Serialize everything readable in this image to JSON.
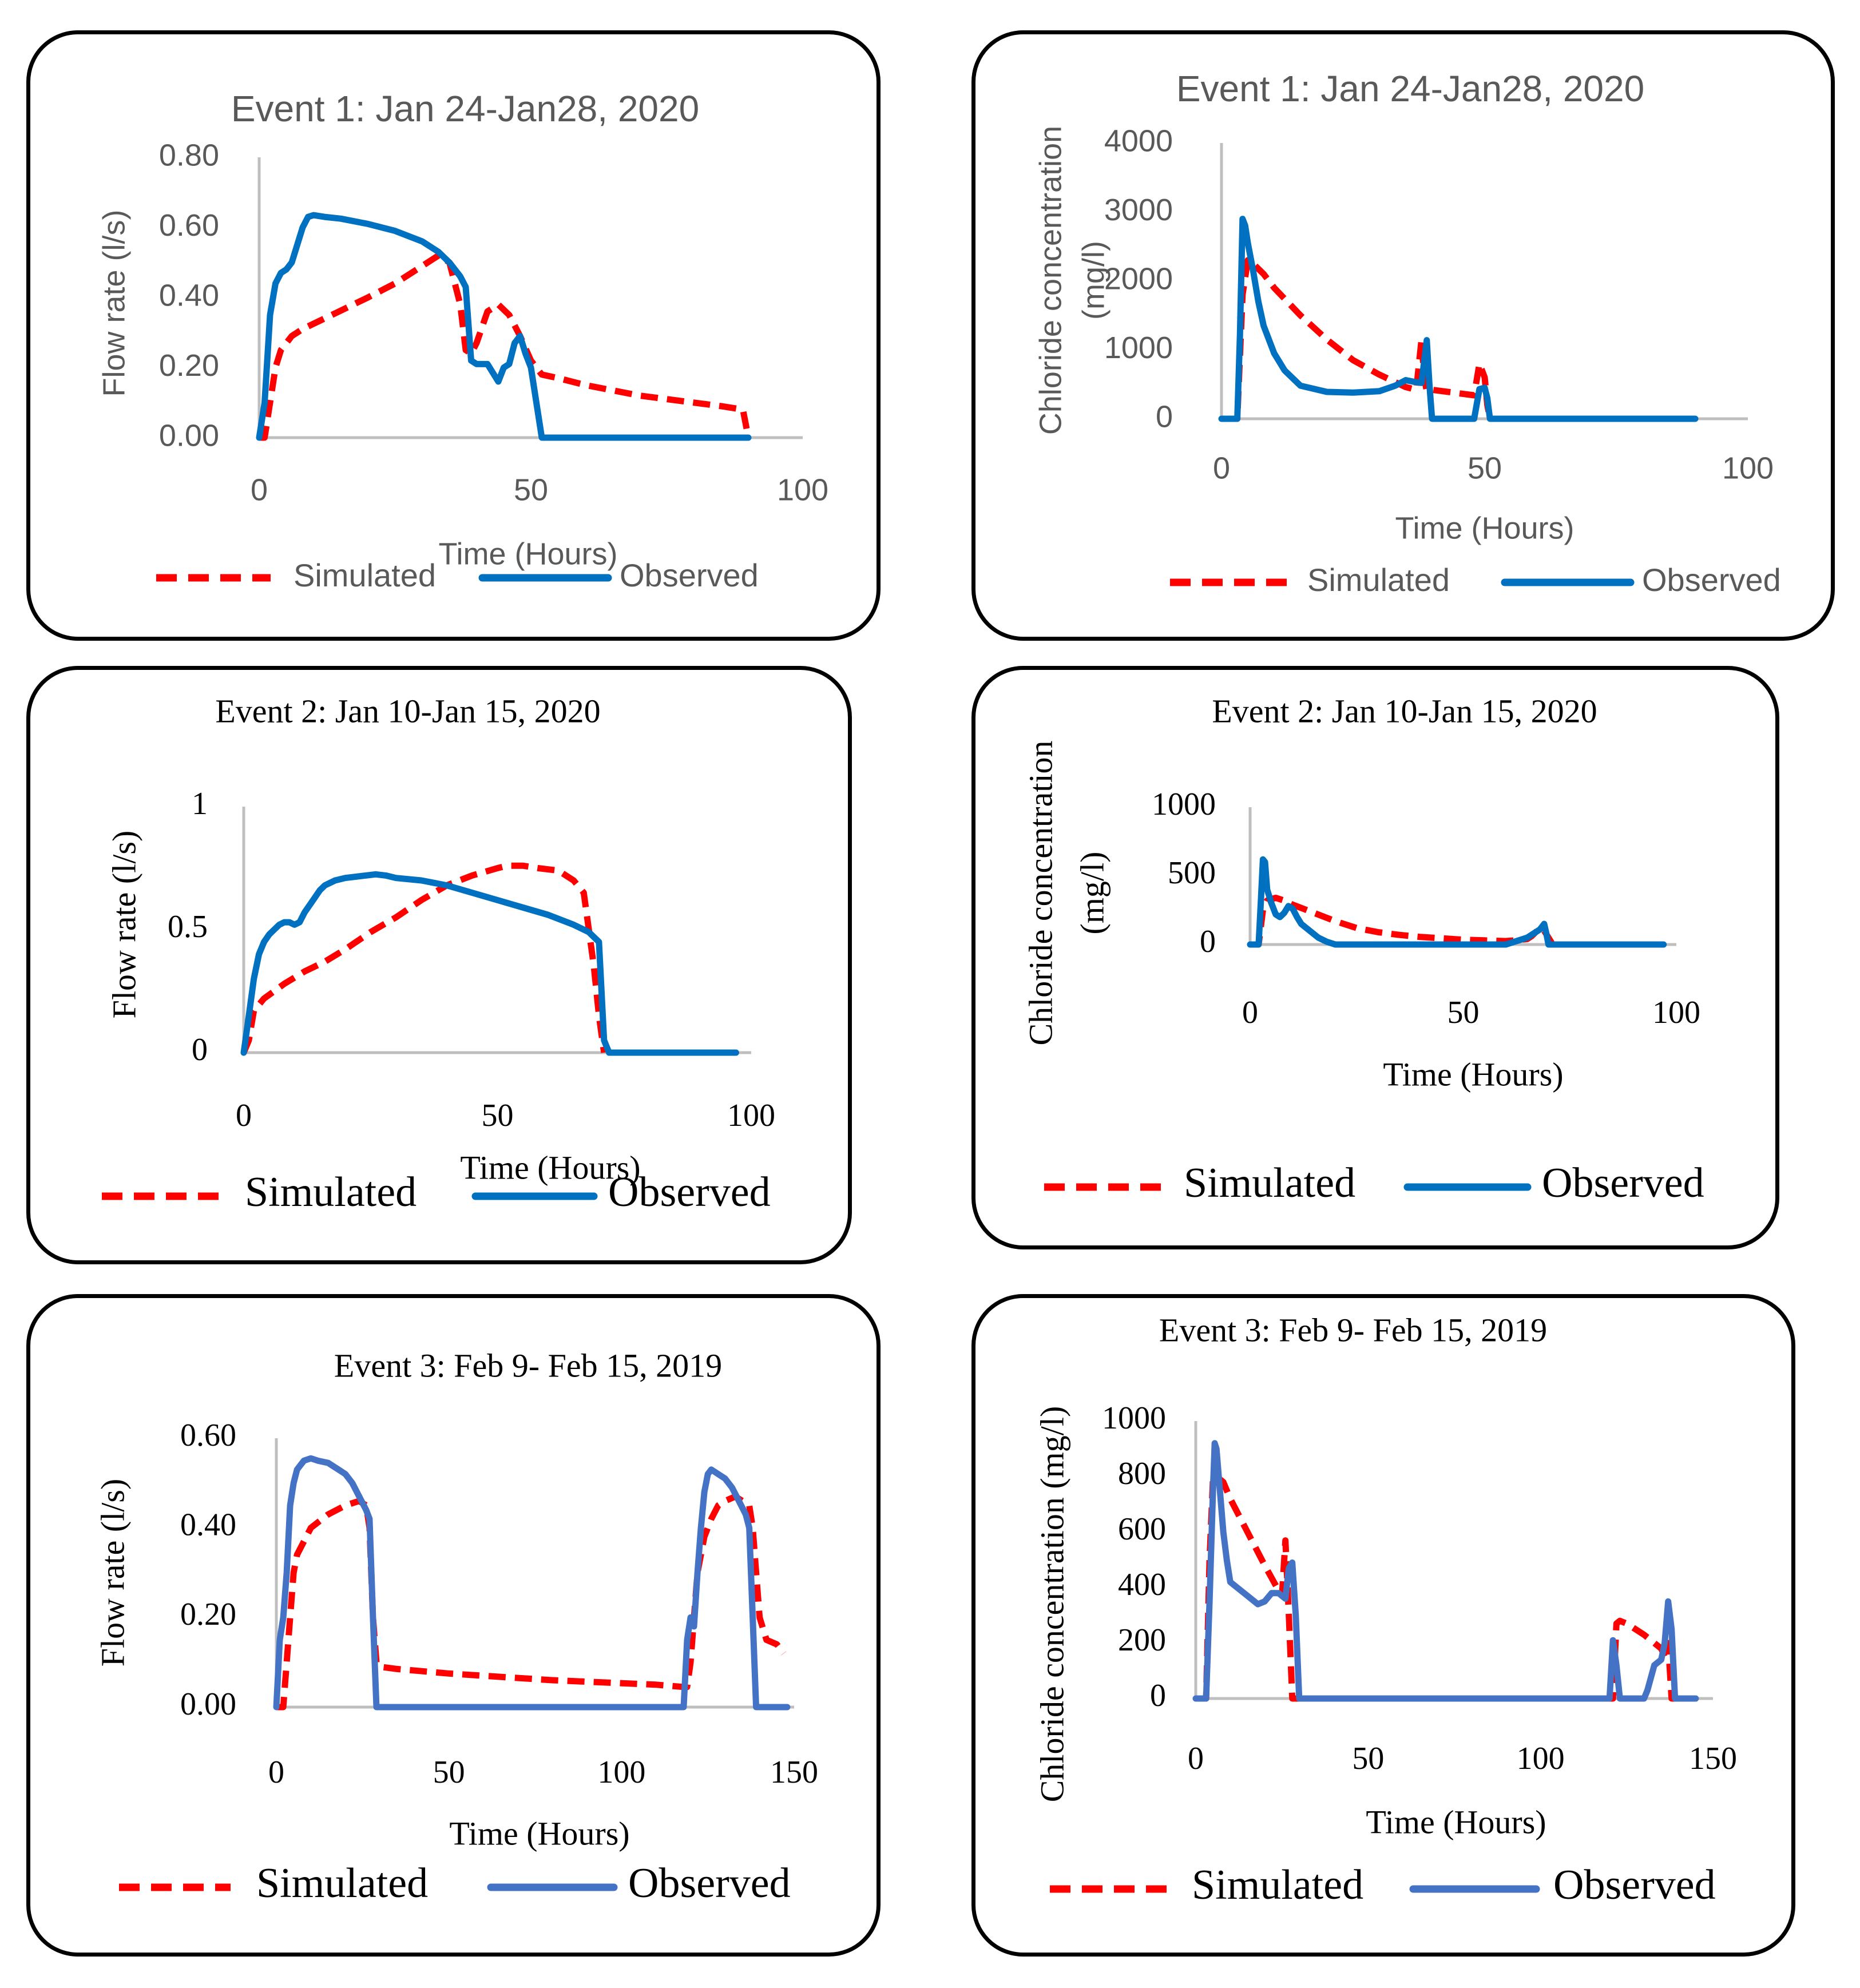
{
  "colors": {
    "simulated": "#ff0000",
    "observed": "#0070c0",
    "observed_alt": "#4472c4",
    "axis": "#bfbfbf",
    "text_sans": "#595959",
    "text_serif": "#000000"
  },
  "chart_data": [
    {
      "id": "p1",
      "type": "line",
      "title": "Event 1: Jan 24-Jan28, 2020",
      "xlabel": "Time (Hours)",
      "ylabel": "Flow rate (l/s)",
      "ylabel2": "",
      "xlim": [
        0,
        100
      ],
      "ylim": [
        0,
        0.8
      ],
      "xticks": [
        "0",
        "50",
        "100"
      ],
      "yticks": [
        "0.00",
        "0.20",
        "0.40",
        "0.60",
        "0.80"
      ],
      "legend": [
        "Simulated",
        "Observed"
      ],
      "series": [
        {
          "name": "Simulated",
          "x": [
            0,
            1,
            2,
            3,
            4,
            6,
            8,
            12,
            16,
            20,
            25,
            30,
            33,
            35,
            36,
            37,
            38,
            39,
            40,
            42,
            43,
            44,
            46,
            48,
            50,
            52,
            55,
            60,
            70,
            80,
            85,
            89,
            90
          ],
          "y": [
            0,
            0,
            0.1,
            0.2,
            0.25,
            0.29,
            0.31,
            0.34,
            0.37,
            0.4,
            0.44,
            0.49,
            0.52,
            0.5,
            0.44,
            0.38,
            0.25,
            0.24,
            0.27,
            0.36,
            0.37,
            0.38,
            0.35,
            0.29,
            0.22,
            0.18,
            0.17,
            0.15,
            0.12,
            0.1,
            0.09,
            0.08,
            0.0
          ]
        },
        {
          "name": "Observed",
          "x": [
            0,
            1,
            2,
            3,
            4,
            5,
            6,
            7,
            8,
            9,
            10,
            12,
            15,
            20,
            25,
            30,
            33,
            35,
            37,
            38,
            39,
            40,
            42,
            44,
            45,
            46,
            47,
            48,
            49,
            50,
            51,
            52,
            53,
            55,
            60,
            70,
            80,
            90
          ],
          "y": [
            0,
            0.1,
            0.35,
            0.44,
            0.47,
            0.48,
            0.5,
            0.55,
            0.6,
            0.63,
            0.635,
            0.63,
            0.625,
            0.61,
            0.59,
            0.56,
            0.53,
            0.5,
            0.46,
            0.43,
            0.22,
            0.21,
            0.21,
            0.16,
            0.2,
            0.21,
            0.27,
            0.29,
            0.24,
            0.2,
            0.1,
            0,
            0,
            0,
            0,
            0,
            0,
            0
          ]
        }
      ]
    },
    {
      "id": "p2",
      "type": "line",
      "title": "Event 1: Jan 24-Jan28, 2020",
      "xlabel": "Time (Hours)",
      "ylabel": "Chloride concentration",
      "ylabel2": "(mg/l)",
      "xlim": [
        0,
        100
      ],
      "ylim": [
        0,
        4000
      ],
      "xticks": [
        "0",
        "50",
        "100"
      ],
      "yticks": [
        "0",
        "1000",
        "2000",
        "3000",
        "4000"
      ],
      "legend": [
        "Simulated",
        "Observed"
      ],
      "series": [
        {
          "name": "Simulated",
          "x": [
            0,
            3,
            4,
            5,
            6,
            8,
            10,
            15,
            20,
            25,
            30,
            35,
            37,
            38,
            38.5,
            39,
            40,
            45,
            48,
            49,
            50,
            50.5,
            51
          ],
          "y": [
            0,
            0,
            1800,
            2300,
            2250,
            2100,
            1900,
            1500,
            1150,
            850,
            640,
            460,
            420,
            1150,
            600,
            400,
            420,
            370,
            340,
            800,
            600,
            200,
            0
          ]
        },
        {
          "name": "Observed",
          "x": [
            0,
            3,
            3.5,
            4,
            4.5,
            5,
            6,
            7,
            8,
            10,
            12,
            15,
            20,
            25,
            30,
            33,
            35,
            37,
            38,
            39,
            39.5,
            40,
            40.5,
            41,
            45,
            48,
            49,
            50,
            50.5,
            51,
            55,
            60,
            70,
            80,
            90
          ],
          "y": [
            0,
            0,
            1200,
            2900,
            2800,
            2550,
            2150,
            1700,
            1350,
            950,
            700,
            480,
            390,
            380,
            400,
            480,
            560,
            530,
            520,
            1140,
            500,
            0,
            0,
            0,
            0,
            0,
            430,
            450,
            300,
            0,
            0,
            0,
            0,
            0,
            0
          ]
        }
      ]
    },
    {
      "id": "p3",
      "type": "line",
      "title": "Event 2: Jan 10-Jan 15, 2020",
      "xlabel": "Time (Hours)",
      "ylabel": "Flow rate (l/s)",
      "ylabel2": "",
      "xlim": [
        0,
        100
      ],
      "ylim": [
        0,
        1
      ],
      "xticks": [
        "0",
        "50",
        "100"
      ],
      "yticks": [
        "0",
        "0.5",
        "1"
      ],
      "legend": [
        "Simulated",
        "Observed"
      ],
      "series": [
        {
          "name": "Simulated",
          "x": [
            0,
            1,
            2,
            4,
            8,
            12,
            16,
            20,
            25,
            30,
            35,
            40,
            45,
            50,
            52,
            55,
            58,
            62,
            65,
            67,
            68,
            69,
            70,
            71
          ],
          "y": [
            0,
            0.05,
            0.17,
            0.22,
            0.28,
            0.33,
            0.37,
            0.42,
            0.49,
            0.55,
            0.62,
            0.68,
            0.72,
            0.75,
            0.76,
            0.76,
            0.75,
            0.74,
            0.7,
            0.65,
            0.5,
            0.35,
            0.15,
            0
          ]
        },
        {
          "name": "Observed",
          "x": [
            0,
            1,
            2,
            3,
            4,
            5,
            6,
            7,
            8,
            9,
            10,
            11,
            12,
            13,
            14,
            15,
            16,
            18,
            20,
            22,
            24,
            26,
            28,
            30,
            35,
            40,
            45,
            50,
            55,
            60,
            65,
            68,
            69,
            70,
            71,
            72,
            80,
            90,
            97
          ],
          "y": [
            0,
            0.15,
            0.3,
            0.4,
            0.45,
            0.48,
            0.5,
            0.52,
            0.53,
            0.53,
            0.52,
            0.53,
            0.57,
            0.6,
            0.63,
            0.66,
            0.68,
            0.7,
            0.71,
            0.715,
            0.72,
            0.725,
            0.72,
            0.71,
            0.7,
            0.68,
            0.65,
            0.62,
            0.59,
            0.56,
            0.52,
            0.49,
            0.47,
            0.45,
            0.05,
            0,
            0,
            0,
            0
          ]
        }
      ]
    },
    {
      "id": "p4",
      "type": "line",
      "title": "Event 2: Jan 10-Jan 15, 2020",
      "xlabel": "Time (Hours)",
      "ylabel": "Chloride concentration",
      "ylabel2": "(mg/l)",
      "xlim": [
        0,
        100
      ],
      "ylim": [
        0,
        1000
      ],
      "xticks": [
        "0",
        "50",
        "100"
      ],
      "yticks": [
        "0",
        "500",
        "1000"
      ],
      "legend": [
        "Simulated",
        "Observed"
      ],
      "series": [
        {
          "name": "Simulated",
          "x": [
            0,
            2,
            3,
            4,
            5,
            6,
            8,
            10,
            15,
            20,
            25,
            30,
            35,
            40,
            45,
            50,
            55,
            60,
            62,
            65,
            66,
            67,
            68,
            69,
            70,
            71
          ],
          "y": [
            0,
            0,
            250,
            320,
            330,
            340,
            320,
            290,
            230,
            170,
            120,
            90,
            70,
            55,
            45,
            35,
            30,
            25,
            30,
            40,
            60,
            90,
            120,
            100,
            50,
            0
          ]
        },
        {
          "name": "Observed",
          "x": [
            0,
            2,
            2.5,
            3,
            3.5,
            4,
            5,
            6,
            7,
            8,
            9,
            10,
            11,
            12,
            14,
            16,
            18,
            20,
            25,
            30,
            40,
            50,
            60,
            65,
            68,
            69,
            69.5,
            70,
            71,
            80,
            90,
            97
          ],
          "y": [
            0,
            0,
            300,
            620,
            600,
            400,
            300,
            220,
            200,
            230,
            280,
            260,
            200,
            150,
            100,
            50,
            20,
            0,
            0,
            0,
            0,
            0,
            0,
            50,
            110,
            150,
            80,
            0,
            0,
            0,
            0,
            0
          ]
        }
      ]
    },
    {
      "id": "p5",
      "type": "line",
      "title": "Event 3: Feb 9- Feb 15, 2019",
      "xlabel": "Time (Hours)",
      "ylabel": "Flow rate (l/s)",
      "ylabel2": "",
      "xlim": [
        0,
        150
      ],
      "ylim": [
        0,
        0.6
      ],
      "xticks": [
        "0",
        "50",
        "100",
        "150"
      ],
      "yticks": [
        "0.00",
        "0.20",
        "0.40",
        "0.60"
      ],
      "legend": [
        "Simulated",
        "Observed"
      ],
      "series": [
        {
          "name": "Simulated",
          "x": [
            0,
            2,
            3,
            4,
            5,
            6,
            8,
            10,
            15,
            20,
            24,
            26,
            27,
            28,
            29,
            30,
            35,
            50,
            80,
            110,
            118,
            119,
            120,
            121,
            122,
            124,
            126,
            128,
            130,
            133,
            135,
            137,
            138,
            139,
            140,
            142,
            145,
            147
          ],
          "y": [
            0,
            0,
            0.1,
            0.2,
            0.3,
            0.34,
            0.37,
            0.4,
            0.43,
            0.45,
            0.46,
            0.45,
            0.4,
            0.2,
            0.1,
            0.09,
            0.085,
            0.075,
            0.06,
            0.05,
            0.045,
            0.045,
            0.1,
            0.2,
            0.3,
            0.38,
            0.42,
            0.45,
            0.46,
            0.47,
            0.46,
            0.45,
            0.4,
            0.3,
            0.2,
            0.15,
            0.14,
            0.12
          ]
        },
        {
          "name": "Observed",
          "x": [
            0,
            1,
            2,
            3,
            4,
            5,
            6,
            7,
            8,
            10,
            12,
            15,
            18,
            20,
            22,
            24,
            26,
            27,
            28,
            29,
            30,
            35,
            50,
            80,
            110,
            118,
            119,
            120,
            121,
            122,
            123,
            124,
            125,
            126,
            127,
            128,
            130,
            132,
            134,
            136,
            137,
            138,
            139,
            140,
            141,
            145,
            148
          ],
          "y": [
            0,
            0.15,
            0.2,
            0.3,
            0.45,
            0.5,
            0.53,
            0.54,
            0.55,
            0.555,
            0.55,
            0.545,
            0.53,
            0.52,
            0.5,
            0.47,
            0.44,
            0.42,
            0.2,
            0,
            0,
            0,
            0,
            0,
            0,
            0,
            0.15,
            0.2,
            0.18,
            0.3,
            0.4,
            0.48,
            0.52,
            0.53,
            0.525,
            0.52,
            0.51,
            0.49,
            0.46,
            0.43,
            0.4,
            0.2,
            0,
            0,
            0,
            0,
            0
          ]
        }
      ]
    },
    {
      "id": "p6",
      "type": "line",
      "title": "Event 3: Feb 9- Feb 15, 2019",
      "xlabel": "Time (Hours)",
      "ylabel": "Chloride concentration (mg/l)",
      "ylabel2": "",
      "xlim": [
        0,
        150
      ],
      "ylim": [
        0,
        1000
      ],
      "xticks": [
        "0",
        "50",
        "100",
        "150"
      ],
      "yticks": [
        "0",
        "200",
        "400",
        "600",
        "800",
        "1000"
      ],
      "legend": [
        "Simulated",
        "Observed"
      ],
      "series": [
        {
          "name": "Simulated",
          "x": [
            0,
            3,
            4,
            5,
            6,
            8,
            10,
            15,
            20,
            24,
            25,
            26,
            27,
            28,
            29,
            30,
            50,
            100,
            121,
            122,
            123,
            125,
            130,
            135,
            136,
            137,
            138,
            139,
            140
          ],
          "y": [
            0,
            0,
            500,
            790,
            800,
            780,
            720,
            600,
            480,
            390,
            370,
            570,
            300,
            0,
            0,
            0,
            0,
            0,
            0,
            270,
            280,
            270,
            230,
            180,
            150,
            200,
            0,
            0,
            0
          ]
        },
        {
          "name": "Observed",
          "x": [
            0,
            3,
            4,
            5,
            5.5,
            6,
            7,
            8,
            9,
            10,
            12,
            15,
            18,
            20,
            22,
            24,
            26,
            27,
            28,
            29,
            30,
            50,
            100,
            119,
            120,
            121,
            122,
            123,
            130,
            131,
            133,
            135,
            136,
            137,
            138,
            139,
            140,
            145
          ],
          "y": [
            0,
            0,
            350,
            750,
            920,
            900,
            750,
            600,
            500,
            420,
            400,
            370,
            340,
            350,
            380,
            380,
            360,
            470,
            490,
            300,
            0,
            0,
            0,
            0,
            0,
            210,
            120,
            0,
            0,
            30,
            120,
            140,
            200,
            350,
            250,
            0,
            0,
            0
          ]
        }
      ]
    }
  ]
}
